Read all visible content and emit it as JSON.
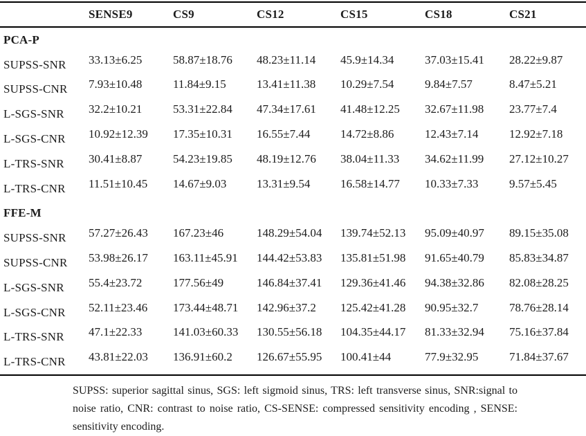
{
  "table": {
    "columns": [
      "",
      "SENSE9",
      "CS9",
      "CS12",
      "CS15",
      "CS18",
      "CS21"
    ],
    "sections": [
      {
        "header": "PCA-P",
        "rows": [
          {
            "label": "SUPSS-SNR",
            "values": [
              "33.13±6.25",
              "58.87±18.76",
              "48.23±11.14",
              "45.9±14.34",
              "37.03±15.41",
              "28.22±9.87"
            ]
          },
          {
            "label": "SUPSS-CNR",
            "values": [
              "7.93±10.48",
              "11.84±9.15",
              "13.41±11.38",
              "10.29±7.54",
              "9.84±7.57",
              "8.47±5.21"
            ]
          },
          {
            "label": "L-SGS-SNR",
            "values": [
              "32.2±10.21",
              "53.31±22.84",
              "47.34±17.61",
              "41.48±12.25",
              "32.67±11.98",
              "23.77±7.4"
            ]
          },
          {
            "label": "L-SGS-CNR",
            "values": [
              "10.92±12.39",
              "17.35±10.31",
              "16.55±7.44",
              "14.72±8.86",
              "12.43±7.14",
              "12.92±7.18"
            ]
          },
          {
            "label": "L-TRS-SNR",
            "values": [
              "30.41±8.87",
              "54.23±19.85",
              "48.19±12.76",
              "38.04±11.33",
              "34.62±11.99",
              "27.12±10.27"
            ]
          },
          {
            "label": "L-TRS-CNR",
            "values": [
              "11.51±10.45",
              "14.67±9.03",
              "13.31±9.54",
              "16.58±14.77",
              "10.33±7.33",
              "9.57±5.45"
            ]
          }
        ]
      },
      {
        "header": "FFE-M",
        "rows": [
          {
            "label": "SUPSS-SNR",
            "values": [
              "57.27±26.43",
              "167.23±46",
              "148.29±54.04",
              "139.74±52.13",
              "95.09±40.97",
              "89.15±35.08"
            ]
          },
          {
            "label": "SUPSS-CNR",
            "values": [
              "53.98±26.17",
              "163.11±45.91",
              "144.42±53.83",
              "135.81±51.98",
              "91.65±40.79",
              "85.83±34.87"
            ]
          },
          {
            "label": "L-SGS-SNR",
            "values": [
              "55.4±23.72",
              "177.56±49",
              "146.84±37.41",
              "129.36±41.46",
              "94.38±32.86",
              "82.08±28.25"
            ]
          },
          {
            "label": "L-SGS-CNR",
            "values": [
              "52.11±23.46",
              "173.44±48.71",
              "142.96±37.2",
              "125.42±41.28",
              "90.95±32.7",
              "78.76±28.14"
            ]
          },
          {
            "label": "L-TRS-SNR",
            "values": [
              "47.1±22.33",
              "141.03±60.33",
              "130.55±56.18",
              "104.35±44.17",
              "81.33±32.94",
              "75.16±37.84"
            ]
          },
          {
            "label": "L-TRS-CNR",
            "values": [
              "43.81±22.03",
              "136.91±60.2",
              "126.67±55.95",
              "100.41±44",
              "77.9±32.95",
              "71.84±37.67"
            ]
          }
        ]
      }
    ],
    "footnote_lines": [
      "SUPSS: superior sagittal sinus, SGS: left sigmoid sinus, TRS: left transverse sinus, SNR:signal to",
      "noise ratio, CNR: contrast to noise ratio, CS-SENSE: compressed sensitivity encoding , SENSE:",
      "sensitivity encoding."
    ],
    "colors": {
      "text": "#1c1c1c",
      "rule": "#000000",
      "background": "#ffffff"
    }
  }
}
